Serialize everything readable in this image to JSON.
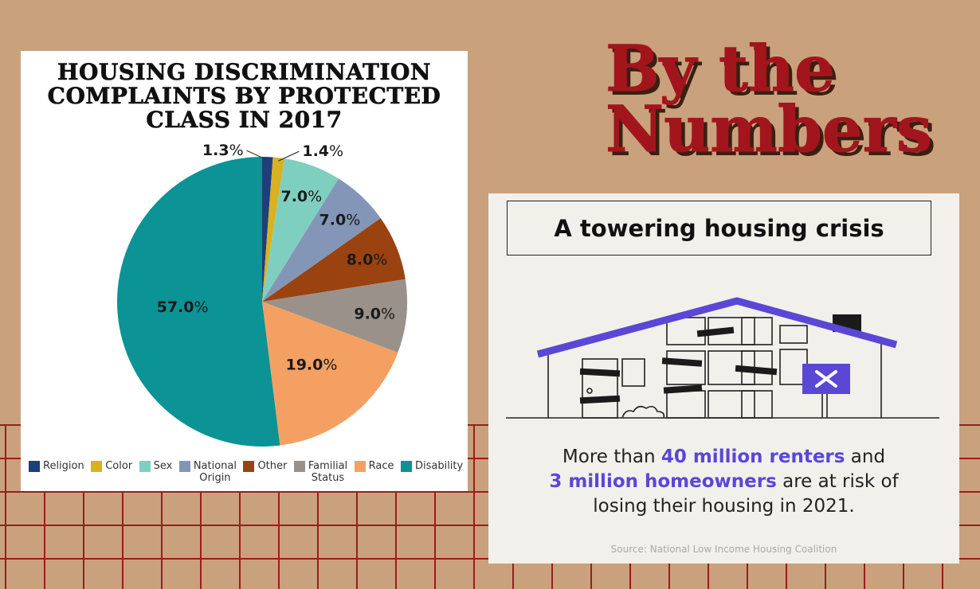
{
  "headline": {
    "line1": "By the",
    "line2": "Numbers"
  },
  "chart_data": {
    "type": "pie",
    "title": "HOUSING DISCRIMINATION COMPLAINTS BY PROTECTED CLASS IN 2017",
    "title_lines": [
      "HOUSING DISCRIMINATION",
      "COMPLAINTS BY PROTECTED",
      "CLASS IN 2017"
    ],
    "legend_position": "bottom",
    "slices": [
      {
        "label": "Religion",
        "label_lines": [
          "Religion"
        ],
        "value": 1.3,
        "display": "1.3%",
        "color": "#1f3f7a"
      },
      {
        "label": "Color",
        "label_lines": [
          "Color"
        ],
        "value": 1.4,
        "display": "1.4%",
        "color": "#d9b21f"
      },
      {
        "label": "Sex",
        "label_lines": [
          "Sex"
        ],
        "value": 7.0,
        "display": "7.0%",
        "color": "#7fcfc0"
      },
      {
        "label": "National Origin",
        "label_lines": [
          "National",
          "Origin"
        ],
        "value": 7.0,
        "display": "7.0%",
        "color": "#8496b8"
      },
      {
        "label": "Other",
        "label_lines": [
          "Other"
        ],
        "value": 8.0,
        "display": "8.0%",
        "color": "#9a4310"
      },
      {
        "label": "Familial Status",
        "label_lines": [
          "Familial",
          "Status"
        ],
        "value": 9.0,
        "display": "9.0%",
        "color": "#9a918b"
      },
      {
        "label": "Race",
        "label_lines": [
          "Race"
        ],
        "value": 19.0,
        "display": "19.0%",
        "color": "#f5a063"
      },
      {
        "label": "Disability",
        "label_lines": [
          "Disability"
        ],
        "value": 57.0,
        "display": "57.0%",
        "color": "#0b9396"
      }
    ]
  },
  "info_card": {
    "title": "A towering housing crisis",
    "text_pre": "More than ",
    "highlight1": "40 million renters",
    "text_mid": " and ",
    "highlight2": "3 million homeowners",
    "text_post": " are at risk of losing their housing in 2021.",
    "source": "Source: National Low Income Housing Coalition",
    "sign_icon": "x-mark-icon",
    "accent_color": "#5a47d6"
  }
}
